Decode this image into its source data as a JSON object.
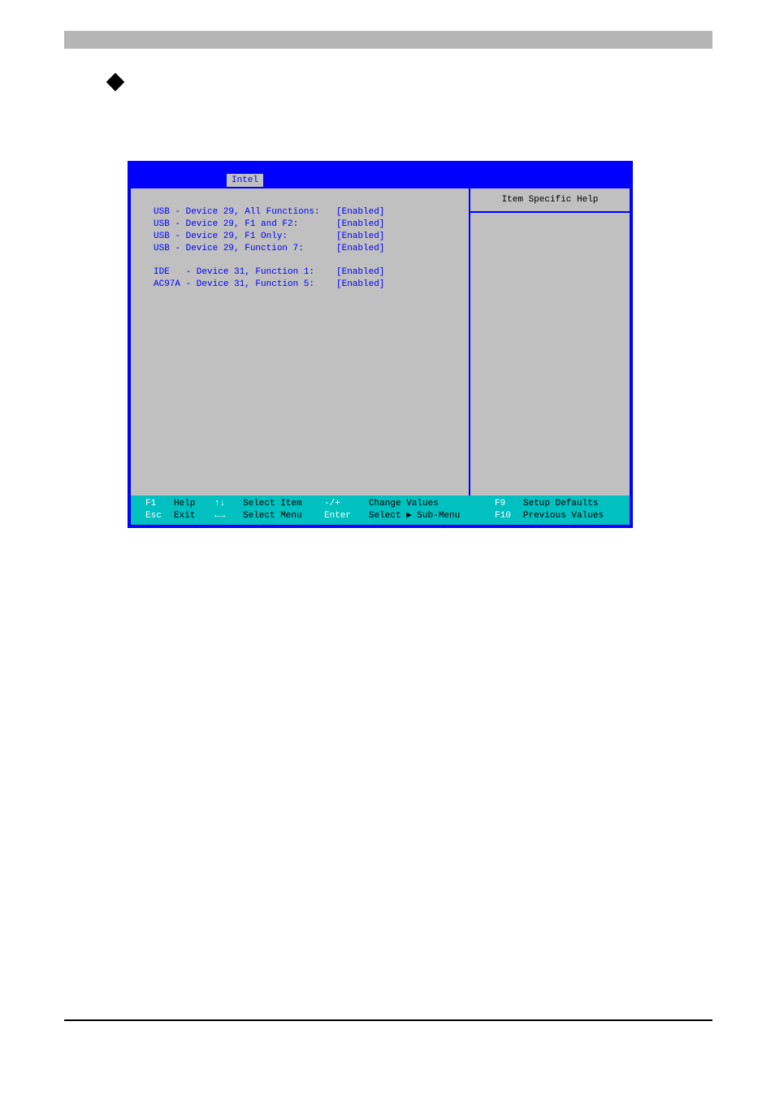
{
  "bios": {
    "title": "Intel",
    "help_title": "Item Specific Help",
    "settings_group1": [
      {
        "label": "USB - Device 29, All Functions:",
        "value": "[Enabled]"
      },
      {
        "label": "USB - Device 29, F1 and F2:",
        "value": "[Enabled]"
      },
      {
        "label": "USB - Device 29, F1 Only:",
        "value": "[Enabled]"
      },
      {
        "label": "USB - Device 29, Function 7:",
        "value": "[Enabled]"
      }
    ],
    "settings_group2": [
      {
        "label": "IDE   - Device 31, Function 1:",
        "value": "[Enabled]"
      },
      {
        "label": "AC97A - Device 31, Function 5:",
        "value": "[Enabled]"
      }
    ],
    "footer": {
      "row1": {
        "k1": "F1",
        "a1": "Help",
        "k2": "↑↓",
        "a2": "Select Item",
        "k3": "-/+",
        "a3": "Change Values",
        "k4": "F9",
        "a4": "Setup Defaults"
      },
      "row2": {
        "k1": "Esc",
        "a1": "Exit",
        "k2": "←→",
        "a2": "Select Menu",
        "k3": "Enter",
        "a3": "Select ▶ Sub-Menu",
        "k4": "F10",
        "a4": "Previous Values"
      }
    }
  },
  "colors": {
    "bios_border": "#0000ff",
    "bios_bg": "#c0c0c0",
    "bios_text": "#0000ff",
    "footer_bg": "#00c0c0",
    "footer_key": "#ffffff",
    "footer_action": "#000000",
    "gray_bar": "#b5b5b5"
  }
}
